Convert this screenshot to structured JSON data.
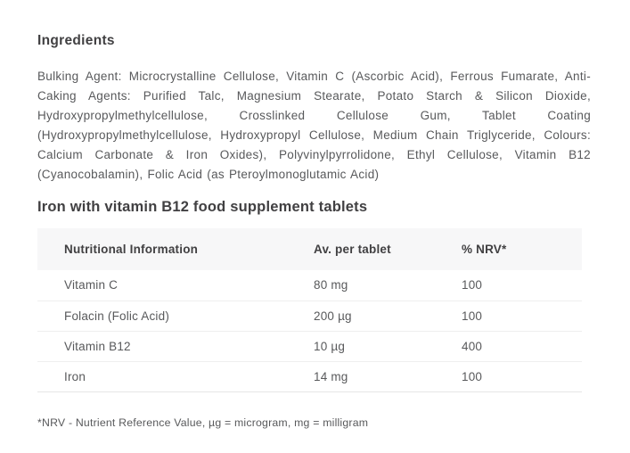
{
  "page": {
    "ingredients_heading": "Ingredients",
    "ingredients_text": "Bulking Agent: Microcrystalline Cellulose, Vitamin C (Ascorbic Acid), Ferrous Fumarate, Anti-Caking Agents: Purified Talc, Magnesium Stearate, Potato Starch & Silicon Dioxide, Hydroxypropylmethylcellulose, Crosslinked Cellulose Gum, Tablet Coating (Hydroxypropylmethylcellulose, Hydroxypropyl Cellulose, Medium Chain Triglyceride, Colours: Calcium Carbonate & Iron Oxides), Polyvinylpyrrolidone, Ethyl Cellulose, Vitamin B12 (Cyanocobalamin), Folic Acid (as Pteroylmonoglutamic Acid)",
    "product_heading": "Iron with vitamin B12 food supplement tablets",
    "footnote": "*NRV - Nutrient Reference Value, µg = microgram, mg = milligram"
  },
  "nutrition_table": {
    "headers": [
      "Nutritional Information",
      "Av. per tablet",
      "% NRV*"
    ],
    "rows": [
      {
        "name": "Vitamin C",
        "amount": "80 mg",
        "nrv": "100"
      },
      {
        "name": "Folacin (Folic Acid)",
        "amount": "200 µg",
        "nrv": "100"
      },
      {
        "name": "Vitamin B12",
        "amount": "10 µg",
        "nrv": "400"
      },
      {
        "name": "Iron",
        "amount": "14 mg",
        "nrv": "100"
      }
    ]
  },
  "colors": {
    "page_bg": "#ffffff",
    "heading_text": "#414042",
    "body_text": "#58595b",
    "table_header_bg": "#f7f7f8",
    "row_border": "#efefef",
    "table_bottom_border": "#e6e6e6"
  }
}
